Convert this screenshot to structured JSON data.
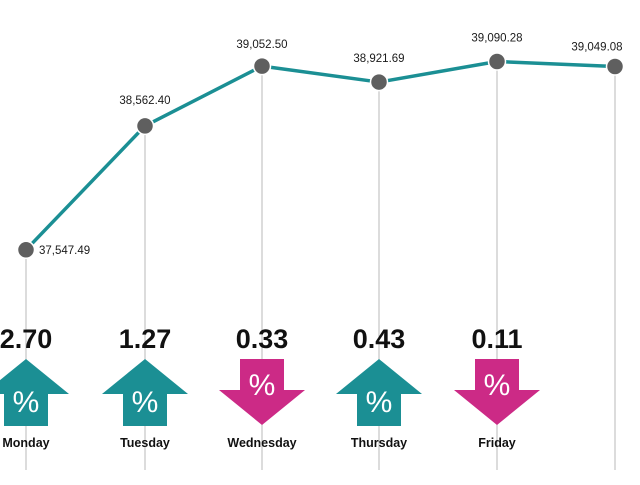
{
  "colors": {
    "line": "#1b8f94",
    "marker": "#5f5f5f",
    "up": "#1b8f94",
    "down": "#cc2a86",
    "guide": "#b8b8b8"
  },
  "chart_data": {
    "type": "line",
    "categories": [
      "Monday",
      "Tuesday",
      "Wednesday",
      "Thursday",
      "Friday",
      ""
    ],
    "values": [
      37547.49,
      38562.4,
      39052.5,
      38921.69,
      39090.28,
      39049.08
    ],
    "value_labels": [
      "37,547.49",
      "38,562.40",
      "39,052.50",
      "38,921.69",
      "39,090.28",
      "39,049.08"
    ],
    "ylim": [
      37300,
      39250
    ],
    "grid": false,
    "changes": [
      {
        "day": "Monday",
        "value": "2.70",
        "direction": "up",
        "symbol": "%"
      },
      {
        "day": "Tuesday",
        "value": "1.27",
        "direction": "up",
        "symbol": "%"
      },
      {
        "day": "Wednesday",
        "value": "0.33",
        "direction": "down",
        "symbol": "%"
      },
      {
        "day": "Thursday",
        "value": "0.43",
        "direction": "up",
        "symbol": "%"
      },
      {
        "day": "Friday",
        "value": "0.11",
        "direction": "down",
        "symbol": "%"
      }
    ]
  }
}
